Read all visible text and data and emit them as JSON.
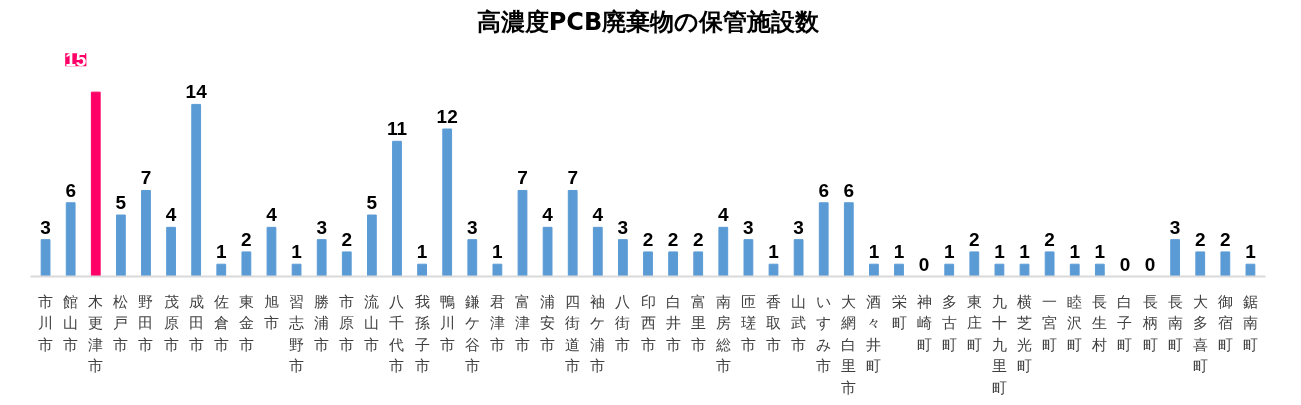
{
  "chart_data": {
    "type": "bar",
    "title": "高濃度PCB廃棄物の保管施設数",
    "categories": [
      "市川市",
      "館山市",
      "木更津市",
      "松戸市",
      "野田市",
      "茂原市",
      "成田市",
      "佐倉市",
      "東金市",
      "旭市",
      "習志野市",
      "勝浦市",
      "市原市",
      "流山市",
      "八千代市",
      "我孫子市",
      "鴨川市",
      "鎌ケ谷市",
      "君津市",
      "富津市",
      "浦安市",
      "四街道市",
      "袖ケ浦市",
      "八街市",
      "印西市",
      "白井市",
      "富里市",
      "南房総市",
      "匝瑳市",
      "香取市",
      "山武市",
      "いすみ市",
      "大網白里市",
      "酒々井町",
      "栄町",
      "神崎町",
      "多古町",
      "東庄町",
      "九十九里町",
      "横芝光町",
      "一宮町",
      "睦沢町",
      "長生村",
      "白子町",
      "長柄町",
      "長南町",
      "大多喜町",
      "御宿町",
      "鋸南町"
    ],
    "values": [
      3,
      6,
      15,
      5,
      7,
      4,
      14,
      1,
      2,
      4,
      1,
      3,
      2,
      5,
      11,
      1,
      12,
      3,
      1,
      7,
      4,
      7,
      4,
      3,
      2,
      2,
      2,
      4,
      3,
      1,
      3,
      6,
      6,
      1,
      1,
      0,
      1,
      2,
      1,
      1,
      2,
      1,
      1,
      0,
      0,
      3,
      2,
      2,
      1
    ],
    "color": "#5b9bd5",
    "colors": [
      "#5b9bd5",
      "#5b9bd5",
      "#ff0066",
      "#5b9bd5",
      "#5b9bd5",
      "#5b9bd5",
      "#5b9bd5",
      "#5b9bd5",
      "#5b9bd5",
      "#5b9bd5",
      "#5b9bd5",
      "#5b9bd5",
      "#5b9bd5",
      "#5b9bd5",
      "#5b9bd5",
      "#5b9bd5",
      "#5b9bd5",
      "#5b9bd5",
      "#5b9bd5",
      "#5b9bd5",
      "#5b9bd5",
      "#5b9bd5",
      "#5b9bd5",
      "#5b9bd5",
      "#5b9bd5",
      "#5b9bd5",
      "#5b9bd5",
      "#5b9bd5",
      "#5b9bd5",
      "#5b9bd5",
      "#5b9bd5",
      "#5b9bd5",
      "#5b9bd5",
      "#5b9bd5",
      "#5b9bd5",
      "#5b9bd5",
      "#5b9bd5",
      "#5b9bd5",
      "#5b9bd5",
      "#5b9bd5",
      "#5b9bd5",
      "#5b9bd5",
      "#5b9bd5",
      "#5b9bd5",
      "#5b9bd5",
      "#5b9bd5",
      "#5b9bd5",
      "#5b9bd5",
      "#5b9bd5"
    ],
    "data_labels": true
  }
}
